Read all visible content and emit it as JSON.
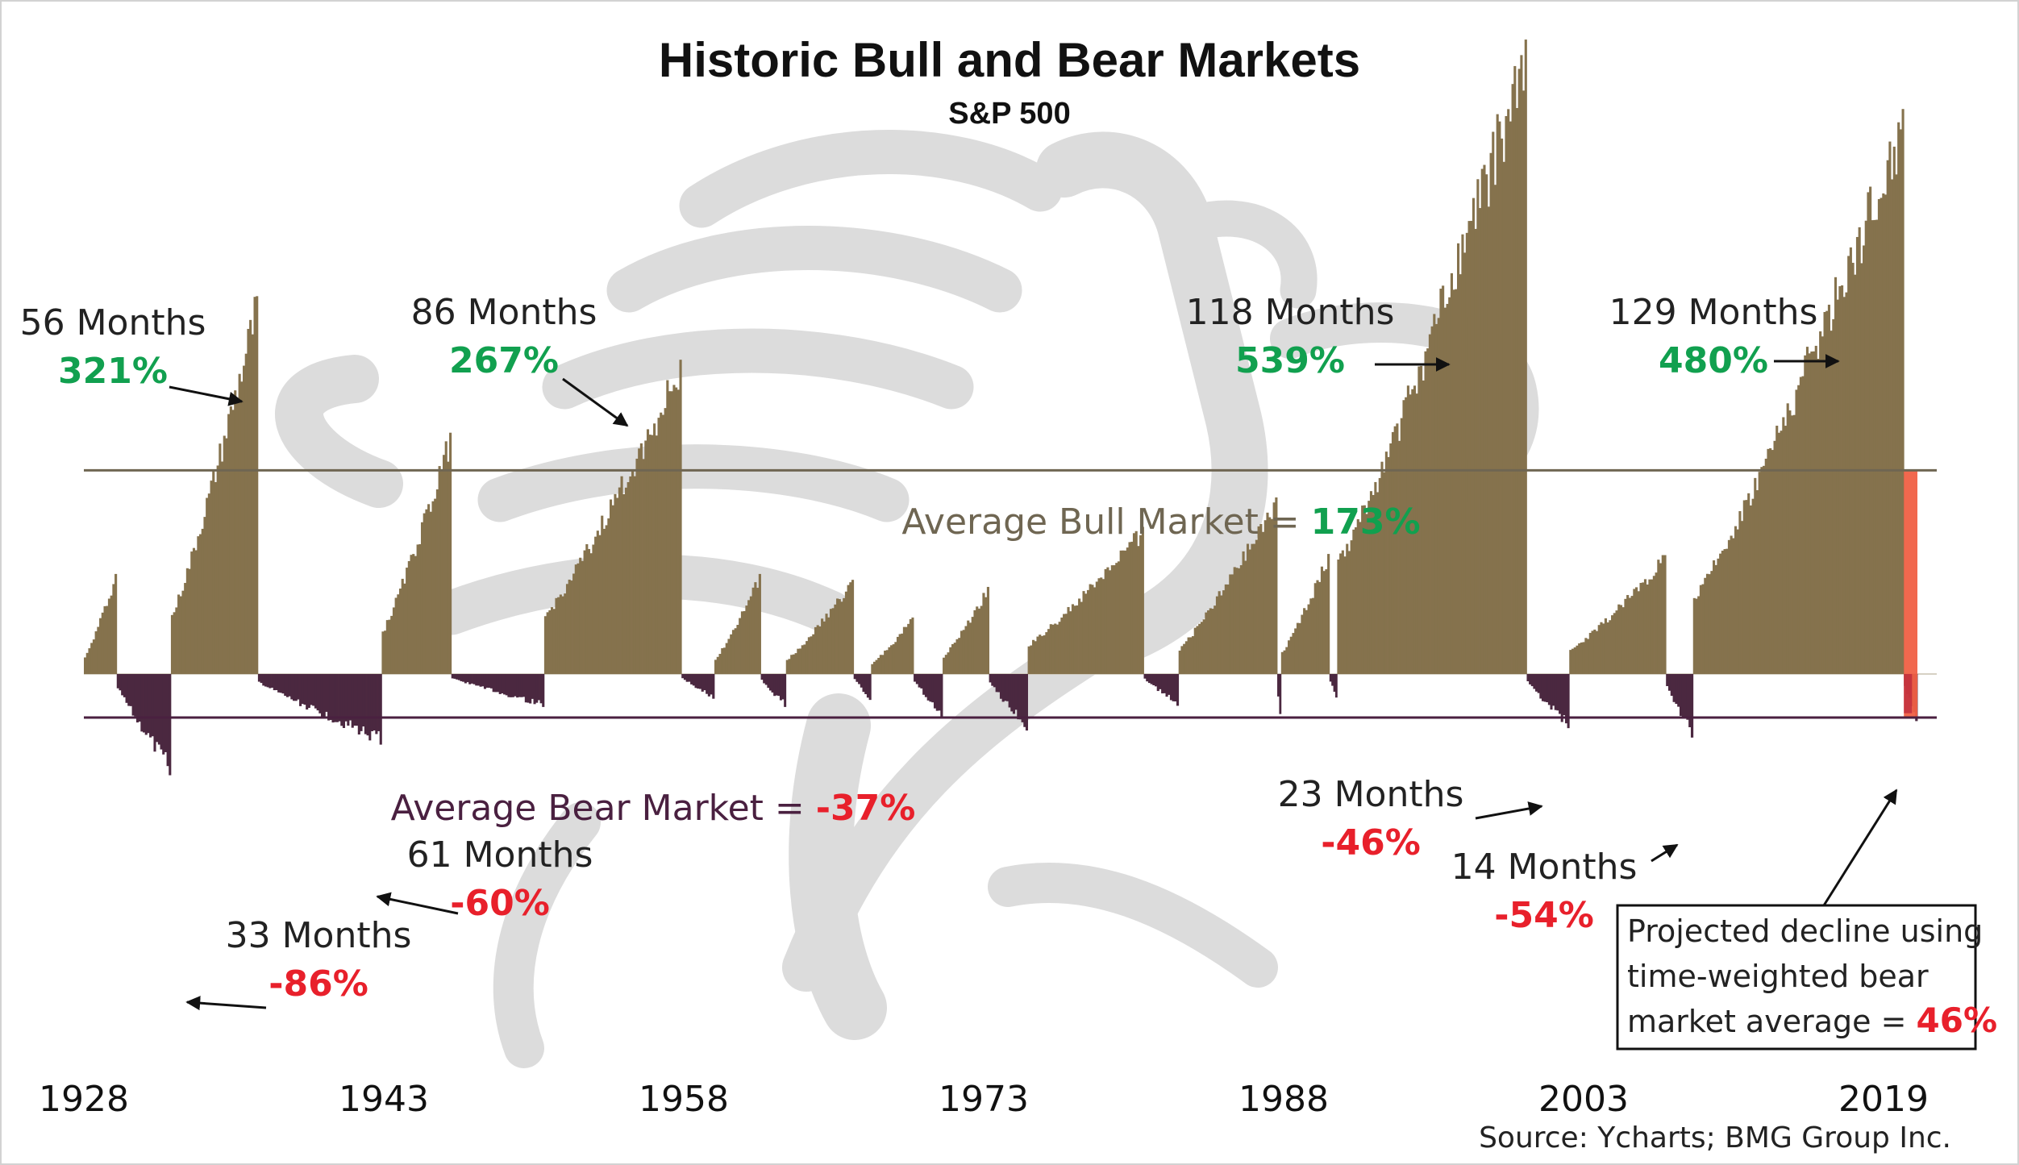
{
  "chart_data": {
    "type": "bar",
    "title": "Historic Bull and Bear Markets",
    "subtitle": "S&P 500",
    "source": "Source: Ycharts; BMG Group Inc.",
    "x_tick_labels": [
      "1928",
      "1943",
      "1958",
      "1973",
      "1988",
      "2003",
      "2019"
    ],
    "x_range": [
      1926.0,
      2021.8
    ],
    "y_unit": "percent",
    "y_range": [
      -90,
      430
    ],
    "average_bull": {
      "label": "Average Bull Market = ",
      "value_label": "173%",
      "value": 173
    },
    "average_bear": {
      "label": "Average Bear Market = ",
      "value_label": "-37%",
      "value": -37
    },
    "bull_markets": [
      {
        "start": 1926.0,
        "end": 1927.7,
        "peak": 85
      },
      {
        "start": 1930.5,
        "end": 1935.0,
        "peak": 321,
        "months": 56,
        "label_months": "56 Months",
        "label_pct": "321%"
      },
      {
        "start": 1941.4,
        "end": 1945.0,
        "peak": 205
      },
      {
        "start": 1949.8,
        "end": 1956.9,
        "peak": 267,
        "months": 86,
        "label_months": "86 Months",
        "label_pct": "267%"
      },
      {
        "start": 1958.6,
        "end": 1961.0,
        "peak": 85
      },
      {
        "start": 1962.3,
        "end": 1965.8,
        "peak": 80
      },
      {
        "start": 1966.7,
        "end": 1968.9,
        "peak": 48
      },
      {
        "start": 1970.4,
        "end": 1972.8,
        "peak": 74
      },
      {
        "start": 1974.8,
        "end": 1980.8,
        "peak": 125
      },
      {
        "start": 1982.6,
        "end": 1987.7,
        "peak": 150
      },
      {
        "start": 1987.9,
        "end": 1990.4,
        "peak": 102
      },
      {
        "start": 1990.8,
        "end": 2000.6,
        "peak": 539,
        "months": 118,
        "label_months": "118 Months",
        "label_pct": "539%"
      },
      {
        "start": 2002.8,
        "end": 2007.8,
        "peak": 101
      },
      {
        "start": 2009.2,
        "end": 2020.1,
        "peak": 480,
        "months": 129,
        "label_months": "129 Months",
        "label_pct": "480%"
      }
    ],
    "bear_markets": [
      {
        "start": 1927.7,
        "end": 1930.5,
        "trough": -86,
        "months": 33,
        "label_months": "33 Months",
        "label_pct": "-86%"
      },
      {
        "start": 1935.0,
        "end": 1941.4,
        "trough": -60,
        "months": 61,
        "label_months": "61 Months",
        "label_pct": "-60%"
      },
      {
        "start": 1945.0,
        "end": 1949.8,
        "trough": -28
      },
      {
        "start": 1956.9,
        "end": 1958.6,
        "trough": -21
      },
      {
        "start": 1961.0,
        "end": 1962.3,
        "trough": -28
      },
      {
        "start": 1965.8,
        "end": 1966.7,
        "trough": -22
      },
      {
        "start": 1968.9,
        "end": 1970.4,
        "trough": -36
      },
      {
        "start": 1972.8,
        "end": 1974.8,
        "trough": -48
      },
      {
        "start": 1980.8,
        "end": 1982.6,
        "trough": -27
      },
      {
        "start": 1987.7,
        "end": 1987.9,
        "trough": -34
      },
      {
        "start": 1990.4,
        "end": 1990.8,
        "trough": -20
      },
      {
        "start": 2000.6,
        "end": 2002.8,
        "trough": -46,
        "months": 23,
        "label_months": "23 Months",
        "label_pct": "-46%"
      },
      {
        "start": 2007.8,
        "end": 2009.2,
        "trough": -54,
        "months": 14,
        "label_months": "14 Months",
        "label_pct": "-54%"
      },
      {
        "start": 2020.1,
        "end": 2020.8,
        "trough": -40
      }
    ],
    "projection": {
      "start": 2020.1,
      "end": 2020.8,
      "top": 173,
      "bottom": -37,
      "value": -46,
      "text_lines": [
        "Projected decline using",
        "time-weighted bear",
        "market average = "
      ],
      "value_label": "46%"
    },
    "colors": {
      "bull": "#85724d",
      "bear": "#4b2840",
      "bull_avg_line": "#6f6652",
      "bear_avg_line": "#4a2040",
      "positive": "#11a04f",
      "negative": "#e8202b",
      "projection": "#f06045",
      "projection_dark": "#b8243a",
      "watermark": "#dcdcdc",
      "text": "#222222"
    },
    "grid": false,
    "legend": "none"
  }
}
